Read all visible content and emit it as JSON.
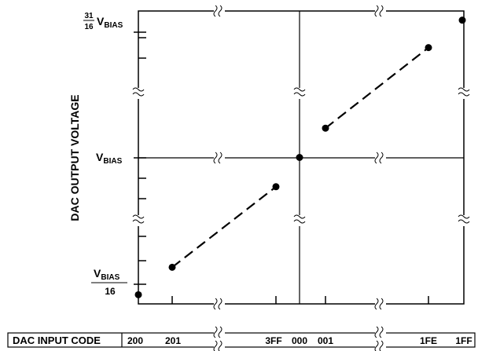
{
  "chart_data": {
    "type": "line",
    "ylabel": "DAC OUTPUT VOLTAGE",
    "x_axis": {
      "header": "DAC INPUT CODE",
      "codes": [
        "200",
        "201",
        "3FF",
        "000",
        "001",
        "1FE",
        "1FF"
      ]
    },
    "y_ticks": {
      "top": {
        "num": "31",
        "den": "16",
        "text": "V",
        "sub": "BIAS"
      },
      "mid": {
        "text": "V",
        "sub": "BIAS"
      },
      "bottom": {
        "text": "V",
        "sub": "BIAS",
        "den": "16"
      }
    },
    "ylim": [
      0,
      2
    ],
    "y_values_per_vbias": {
      "200": 0.0625,
      "201": 0.25,
      "3FF": 0.8,
      "000": 1.0,
      "001": 1.2,
      "1FE": 1.75,
      "1FF": 1.9375
    },
    "series": [
      {
        "codes": [
          "200"
        ],
        "style": "point",
        "values": [
          0.0625
        ]
      },
      {
        "codes": [
          "201",
          "3FF"
        ],
        "style": "dashed",
        "values": [
          0.25,
          0.8
        ]
      },
      {
        "codes": [
          "000"
        ],
        "style": "point",
        "values": [
          1.0
        ]
      },
      {
        "codes": [
          "001",
          "1FE"
        ],
        "style": "dashed",
        "values": [
          1.2,
          1.75
        ]
      },
      {
        "codes": [
          "1FF"
        ],
        "style": "point",
        "values": [
          1.9375
        ]
      }
    ],
    "grid": false,
    "axis_breaks": true
  }
}
